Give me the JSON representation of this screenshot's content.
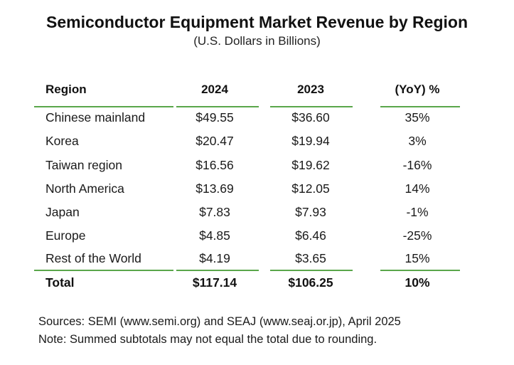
{
  "title": "Semiconductor Equipment Market Revenue by Region",
  "subtitle": "(U.S. Dollars in Billions)",
  "table": {
    "headers": [
      "Region",
      "2024",
      "2023",
      "(YoY) %"
    ],
    "rows": [
      [
        "Chinese mainland",
        "$49.55",
        "$36.60",
        "35%"
      ],
      [
        "Korea",
        "$20.47",
        "$19.94",
        "3%"
      ],
      [
        "Taiwan region",
        "$16.56",
        "$19.62",
        "-16%"
      ],
      [
        "North America",
        "$13.69",
        "$12.05",
        "14%"
      ],
      [
        "Japan",
        "$7.83",
        "$7.93",
        "-1%"
      ],
      [
        "Europe",
        "$4.85",
        "$6.46",
        "-25%"
      ],
      [
        "Rest of the World",
        "$4.19",
        "$3.65",
        "15%"
      ]
    ],
    "total": [
      "Total",
      "$117.14",
      "$106.25",
      "10%"
    ]
  },
  "footer": {
    "sources": "Sources: SEMI (www.semi.org) and SEAJ (www.seaj.or.jp), April 2025",
    "note": "Note: Summed subtotals may not equal the total due to rounding."
  },
  "colors": {
    "rule": "#5aa64b",
    "text": "#1a1a1a"
  }
}
